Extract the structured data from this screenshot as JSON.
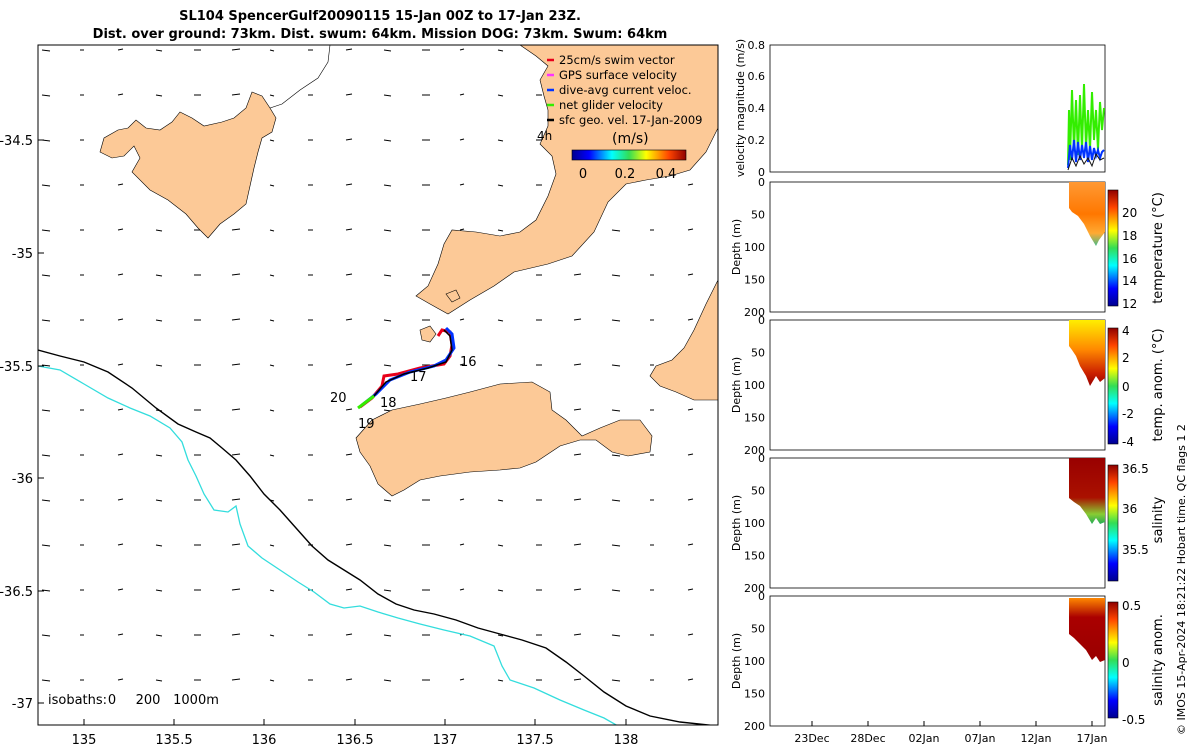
{
  "title": {
    "line1": "SL104 SpencerGulf20090115 15-Jan 00Z to 17-Jan 23Z.",
    "line2": "Dist. over ground: 73km. Dist. swum: 64km. Mission DOG: 73km. Swum: 64km"
  },
  "map": {
    "lon_ticks": [
      "135",
      "135.5",
      "136",
      "136.5",
      "137",
      "137.5",
      "138"
    ],
    "lat_ticks": [
      "-34.5",
      "-35",
      "-35.5",
      "-36",
      "-36.5",
      "-37"
    ],
    "legend": [
      {
        "label": "25cm/s swim vector",
        "color": "#e8001a"
      },
      {
        "label": "GPS surface velocity",
        "color": "#ff33ff"
      },
      {
        "label": "dive-avg current veloc.",
        "color": "#0033ff"
      },
      {
        "label": "net glider velocity",
        "color": "#33ee00"
      },
      {
        "label": "sfc geo. vel. 17-Jan-2009",
        "color": "#000000"
      }
    ],
    "legend_time_label": "4h",
    "colorbar_label": "(m/s)",
    "colorbar_ticks": [
      "0",
      "0.2",
      "0.4"
    ],
    "day_labels": [
      "16",
      "17",
      "18",
      "19",
      "20"
    ],
    "isobaths_label": "isobaths:",
    "isobaths_values": [
      "0",
      "200",
      "1000m"
    ],
    "land_color": "#fcc997",
    "isobath_0_color": "#000000",
    "isobath_200_color": "#33dddd"
  },
  "panels": {
    "time_ticks": [
      "23Dec",
      "28Dec",
      "02Jan",
      "07Jan",
      "12Jan",
      "17Jan"
    ],
    "velocity": {
      "ylabel": "velocity magnitude (m/s)",
      "yticks": [
        "0",
        "0.2",
        "0.4",
        "0.6",
        "0.8"
      ]
    },
    "depth_ylabel": "Depth (m)",
    "depth_ticks": [
      "0",
      "50",
      "100",
      "150",
      "200"
    ],
    "temperature": {
      "label": "temperature (°C)",
      "ticks": [
        "12",
        "14",
        "16",
        "18",
        "20"
      ]
    },
    "temp_anom": {
      "label": "temp. anom. (°C)",
      "ticks": [
        "-4",
        "-2",
        "0",
        "2",
        "4"
      ]
    },
    "salinity": {
      "label": "salinity",
      "ticks": [
        "35.5",
        "36",
        "36.5"
      ]
    },
    "sal_anom": {
      "label": "salinity anom.",
      "ticks": [
        "-0.5",
        "0",
        "0.5"
      ]
    }
  },
  "footer": "© IMOS 15-Apr-2024 18:21:22 Hobart time. QC flags 1  2"
}
